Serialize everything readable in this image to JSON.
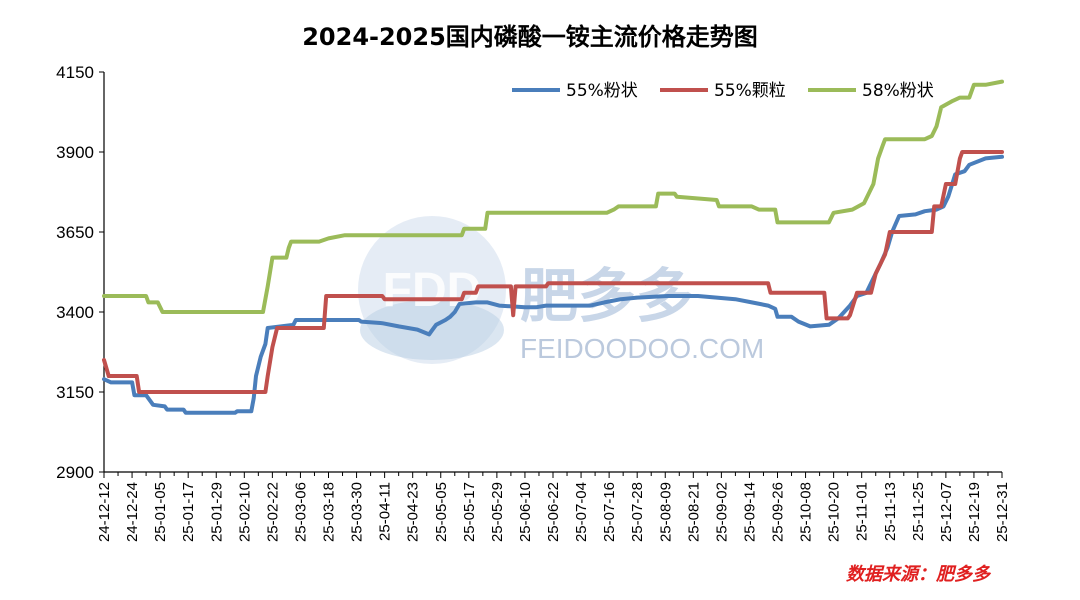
{
  "chart_data": {
    "type": "line",
    "title": "2024-2025国内磷酸一铵主流价格走势图",
    "xlabel": "",
    "ylabel": "",
    "ylim": [
      2900,
      4150
    ],
    "yticks": [
      2900,
      3150,
      3400,
      3650,
      3900,
      4150
    ],
    "x_tick_labels": [
      "24-12-12",
      "24-12-24",
      "25-01-05",
      "25-01-17",
      "25-01-29",
      "25-02-10",
      "25-02-22",
      "25-03-06",
      "25-03-18",
      "25-03-30",
      "25-04-11",
      "25-04-23",
      "25-05-05",
      "25-05-17",
      "25-05-29",
      "25-06-10",
      "25-06-22",
      "25-07-04",
      "25-07-16",
      "25-07-28",
      "25-08-09",
      "25-08-21",
      "25-09-02",
      "25-09-14",
      "25-09-26",
      "25-10-08",
      "25-10-20",
      "25-11-01",
      "25-11-13",
      "25-11-25",
      "25-12-07",
      "25-12-19",
      "25-12-31"
    ],
    "x_start": "2024-12-12",
    "x_end": "2025-12-31",
    "grid": false,
    "legend_position": "top-right",
    "series": [
      {
        "name": "55%粉状",
        "color": "#4a7ebb",
        "points": [
          [
            "2024-12-12",
            3190
          ],
          [
            "2024-12-15",
            3180
          ],
          [
            "2024-12-24",
            3180
          ],
          [
            "2024-12-25",
            3140
          ],
          [
            "2024-12-30",
            3140
          ],
          [
            "2025-01-02",
            3110
          ],
          [
            "2025-01-07",
            3105
          ],
          [
            "2025-01-08",
            3095
          ],
          [
            "2025-01-15",
            3095
          ],
          [
            "2025-01-16",
            3085
          ],
          [
            "2025-02-06",
            3085
          ],
          [
            "2025-02-07",
            3090
          ],
          [
            "2025-02-13",
            3090
          ],
          [
            "2025-02-14",
            3130
          ],
          [
            "2025-02-15",
            3200
          ],
          [
            "2025-02-17",
            3260
          ],
          [
            "2025-02-19",
            3300
          ],
          [
            "2025-02-20",
            3350
          ],
          [
            "2025-03-03",
            3360
          ],
          [
            "2025-03-04",
            3375
          ],
          [
            "2025-03-31",
            3375
          ],
          [
            "2025-04-01",
            3370
          ],
          [
            "2025-04-10",
            3365
          ],
          [
            "2025-04-17",
            3355
          ],
          [
            "2025-04-25",
            3345
          ],
          [
            "2025-04-30",
            3330
          ],
          [
            "2025-05-01",
            3340
          ],
          [
            "2025-05-03",
            3360
          ],
          [
            "2025-05-07",
            3375
          ],
          [
            "2025-05-09",
            3385
          ],
          [
            "2025-05-11",
            3400
          ],
          [
            "2025-05-13",
            3425
          ],
          [
            "2025-05-20",
            3430
          ],
          [
            "2025-05-25",
            3430
          ],
          [
            "2025-05-30",
            3420
          ],
          [
            "2025-06-10",
            3415
          ],
          [
            "2025-06-15",
            3415
          ],
          [
            "2025-06-19",
            3420
          ],
          [
            "2025-06-20",
            3420
          ],
          [
            "2025-07-08",
            3420
          ],
          [
            "2025-07-14",
            3430
          ],
          [
            "2025-07-21",
            3440
          ],
          [
            "2025-07-28",
            3445
          ],
          [
            "2025-08-10",
            3450
          ],
          [
            "2025-08-23",
            3450
          ],
          [
            "2025-08-31",
            3445
          ],
          [
            "2025-09-08",
            3440
          ],
          [
            "2025-09-15",
            3430
          ],
          [
            "2025-09-22",
            3420
          ],
          [
            "2025-09-25",
            3410
          ],
          [
            "2025-09-26",
            3385
          ],
          [
            "2025-10-02",
            3385
          ],
          [
            "2025-10-05",
            3370
          ],
          [
            "2025-10-10",
            3355
          ],
          [
            "2025-10-18",
            3360
          ],
          [
            "2025-10-22",
            3380
          ],
          [
            "2025-10-27",
            3420
          ],
          [
            "2025-10-30",
            3450
          ],
          [
            "2025-11-03",
            3460
          ],
          [
            "2025-11-05",
            3490
          ],
          [
            "2025-11-09",
            3550
          ],
          [
            "2025-11-12",
            3600
          ],
          [
            "2025-11-14",
            3650
          ],
          [
            "2025-11-17",
            3700
          ],
          [
            "2025-11-24",
            3705
          ],
          [
            "2025-11-28",
            3715
          ],
          [
            "2025-12-03",
            3720
          ],
          [
            "2025-12-06",
            3730
          ],
          [
            "2025-12-08",
            3760
          ],
          [
            "2025-12-11",
            3830
          ],
          [
            "2025-12-15",
            3840
          ],
          [
            "2025-12-17",
            3860
          ],
          [
            "2025-12-24",
            3880
          ],
          [
            "2025-12-31",
            3885
          ]
        ]
      },
      {
        "name": "55%颗粒",
        "color": "#c0504d",
        "points": [
          [
            "2024-12-12",
            3250
          ],
          [
            "2024-12-14",
            3200
          ],
          [
            "2024-12-26",
            3200
          ],
          [
            "2024-12-27",
            3150
          ],
          [
            "2025-02-19",
            3150
          ],
          [
            "2025-02-20",
            3200
          ],
          [
            "2025-02-22",
            3290
          ],
          [
            "2025-02-24",
            3350
          ],
          [
            "2025-03-16",
            3350
          ],
          [
            "2025-03-17",
            3450
          ],
          [
            "2025-04-10",
            3450
          ],
          [
            "2025-04-11",
            3440
          ],
          [
            "2025-05-14",
            3440
          ],
          [
            "2025-05-15",
            3460
          ],
          [
            "2025-05-20",
            3460
          ],
          [
            "2025-05-21",
            3480
          ],
          [
            "2025-06-04",
            3480
          ],
          [
            "2025-06-05",
            3390
          ],
          [
            "2025-06-06",
            3480
          ],
          [
            "2025-06-19",
            3480
          ],
          [
            "2025-06-20",
            3490
          ],
          [
            "2025-09-22",
            3490
          ],
          [
            "2025-09-23",
            3460
          ],
          [
            "2025-10-16",
            3460
          ],
          [
            "2025-10-17",
            3380
          ],
          [
            "2025-10-26",
            3380
          ],
          [
            "2025-10-27",
            3390
          ],
          [
            "2025-10-30",
            3460
          ],
          [
            "2025-11-05",
            3460
          ],
          [
            "2025-11-07",
            3520
          ],
          [
            "2025-11-11",
            3580
          ],
          [
            "2025-11-13",
            3650
          ],
          [
            "2025-12-01",
            3650
          ],
          [
            "2025-12-02",
            3730
          ],
          [
            "2025-12-05",
            3730
          ],
          [
            "2025-12-07",
            3800
          ],
          [
            "2025-12-11",
            3800
          ],
          [
            "2025-12-13",
            3880
          ],
          [
            "2025-12-14",
            3900
          ],
          [
            "2025-12-31",
            3900
          ]
        ]
      },
      {
        "name": "58%粉状",
        "color": "#9bbb59",
        "points": [
          [
            "2024-12-12",
            3450
          ],
          [
            "2024-12-30",
            3450
          ],
          [
            "2024-12-31",
            3430
          ],
          [
            "2025-01-04",
            3430
          ],
          [
            "2025-01-06",
            3400
          ],
          [
            "2025-02-18",
            3400
          ],
          [
            "2025-02-20",
            3480
          ],
          [
            "2025-02-22",
            3570
          ],
          [
            "2025-02-28",
            3570
          ],
          [
            "2025-03-01",
            3600
          ],
          [
            "2025-03-02",
            3620
          ],
          [
            "2025-03-14",
            3620
          ],
          [
            "2025-03-18",
            3630
          ],
          [
            "2025-03-25",
            3640
          ],
          [
            "2025-05-14",
            3640
          ],
          [
            "2025-05-15",
            3660
          ],
          [
            "2025-05-24",
            3660
          ],
          [
            "2025-05-25",
            3710
          ],
          [
            "2025-07-15",
            3710
          ],
          [
            "2025-07-18",
            3720
          ],
          [
            "2025-07-20",
            3730
          ],
          [
            "2025-08-05",
            3730
          ],
          [
            "2025-08-06",
            3770
          ],
          [
            "2025-08-13",
            3770
          ],
          [
            "2025-08-14",
            3760
          ],
          [
            "2025-08-31",
            3750
          ],
          [
            "2025-09-01",
            3730
          ],
          [
            "2025-09-15",
            3730
          ],
          [
            "2025-09-18",
            3720
          ],
          [
            "2025-09-25",
            3720
          ],
          [
            "2025-09-26",
            3680
          ],
          [
            "2025-10-18",
            3680
          ],
          [
            "2025-10-20",
            3710
          ],
          [
            "2025-10-28",
            3720
          ],
          [
            "2025-11-02",
            3740
          ],
          [
            "2025-11-04",
            3770
          ],
          [
            "2025-11-06",
            3800
          ],
          [
            "2025-11-08",
            3880
          ],
          [
            "2025-11-10",
            3920
          ],
          [
            "2025-11-11",
            3940
          ],
          [
            "2025-11-28",
            3940
          ],
          [
            "2025-12-01",
            3950
          ],
          [
            "2025-12-03",
            3980
          ],
          [
            "2025-12-05",
            4040
          ],
          [
            "2025-12-10",
            4060
          ],
          [
            "2025-12-13",
            4070
          ],
          [
            "2025-12-17",
            4070
          ],
          [
            "2025-12-19",
            4110
          ],
          [
            "2025-12-24",
            4110
          ],
          [
            "2025-12-31",
            4120
          ]
        ]
      }
    ]
  },
  "source_note": "数据来源：肥多多",
  "watermark": {
    "logo_text": "FDD",
    "brand_text": "肥多多",
    "url_text": "FEIDOODOO.COM"
  }
}
